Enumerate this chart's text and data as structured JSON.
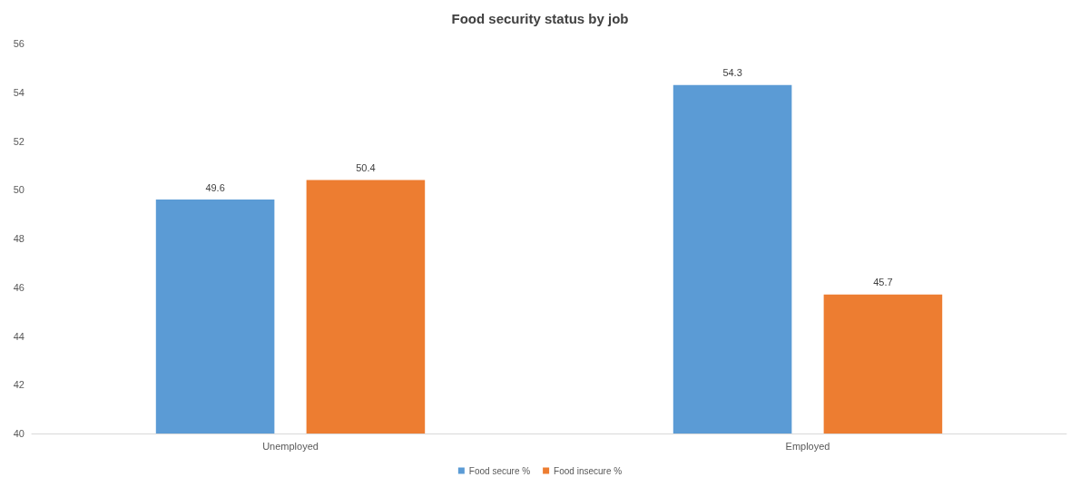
{
  "chart_data": {
    "type": "bar",
    "title": "Food security status by job",
    "categories": [
      "Unemployed",
      "Employed"
    ],
    "series": [
      {
        "name": "Food secure %",
        "color": "#5b9bd5",
        "values": [
          49.6,
          54.3
        ]
      },
      {
        "name": "Food insecure %",
        "color": "#ed7d31",
        "values": [
          50.4,
          45.7
        ]
      }
    ],
    "ylim": [
      40,
      56
    ],
    "yticks": [
      40,
      42,
      44,
      46,
      48,
      50,
      52,
      54,
      56
    ],
    "grid": false,
    "legend": "bottom",
    "data_labels": true
  }
}
